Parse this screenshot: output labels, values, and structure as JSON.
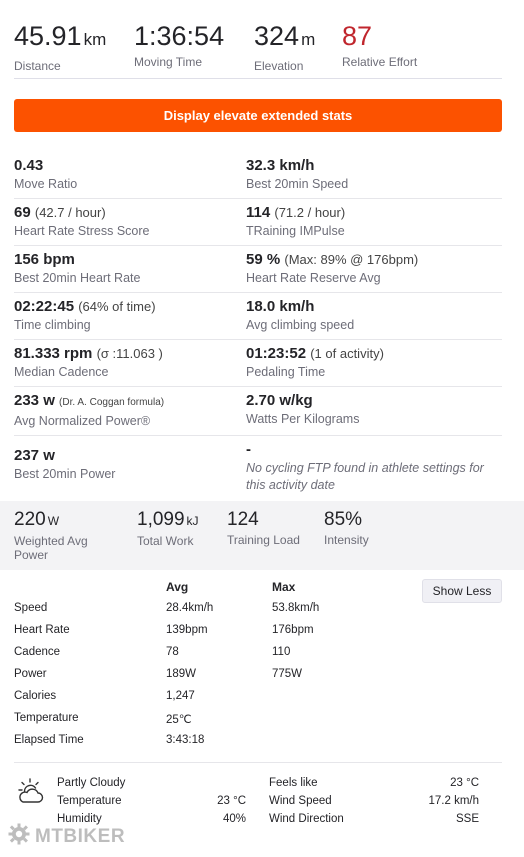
{
  "summary": {
    "distance": {
      "value": "45.91",
      "unit": "km",
      "label": "Distance"
    },
    "moving_time": {
      "value": "1:36:54",
      "label": "Moving Time"
    },
    "elevation": {
      "value": "324",
      "unit": "m",
      "label": "Elevation"
    },
    "relative_effort": {
      "value": "87",
      "label": "Relative Effort"
    }
  },
  "extended_button": "Display elevate extended stats",
  "extended": [
    [
      {
        "value": "0.43",
        "extra": "",
        "label": "Move Ratio"
      },
      {
        "value": "32.3 km/h",
        "extra": "",
        "label": "Best 20min Speed"
      }
    ],
    [
      {
        "value": "69",
        "extra": "(42.7 / hour)",
        "label": "Heart Rate Stress Score"
      },
      {
        "value": "114",
        "extra": "(71.2 / hour)",
        "label": "TRaining IMPulse"
      }
    ],
    [
      {
        "value": "156 bpm",
        "extra": "",
        "label": "Best 20min Heart Rate"
      },
      {
        "value": "59 %",
        "extra": "(Max: 89% @ 176bpm)",
        "label": "Heart Rate Reserve Avg"
      }
    ],
    [
      {
        "value": "02:22:45",
        "extra": "(64% of time)",
        "label": "Time climbing"
      },
      {
        "value": "18.0 km/h",
        "extra": "",
        "label": "Avg climbing speed"
      }
    ],
    [
      {
        "value": "81.333 rpm",
        "extra": "(σ :11.063 )",
        "label": "Median Cadence"
      },
      {
        "value": "01:23:52",
        "extra": "(1 of activity)",
        "label": "Pedaling Time"
      }
    ],
    [
      {
        "value": "233 w",
        "extra": "(Dr. A. Coggan formula)",
        "label": "Avg Normalized Power®"
      },
      {
        "value": "2.70 w/kg",
        "extra": "",
        "label": "Watts Per Kilograms"
      }
    ],
    [
      {
        "value": "237 w",
        "extra": "",
        "label": "Best 20min Power"
      },
      {
        "value": "-",
        "extra": "",
        "label": "No cycling FTP found in athlete settings for this activity date"
      }
    ]
  ],
  "band": {
    "weighted_avg_power": {
      "value": "220",
      "unit": "W",
      "label": "Weighted Avg Power"
    },
    "total_work": {
      "value": "1,099",
      "unit": "kJ",
      "label": "Total Work"
    },
    "training_load": {
      "value": "124",
      "label": "Training Load"
    },
    "intensity": {
      "value": "85%",
      "label": "Intensity"
    }
  },
  "table": {
    "avg_header": "Avg",
    "max_header": "Max",
    "show_less": "Show Less",
    "rows": [
      {
        "name": "Speed",
        "avg": "28.4km/h",
        "max": "53.8km/h"
      },
      {
        "name": "Heart Rate",
        "avg": "139bpm",
        "max": "176bpm"
      },
      {
        "name": "Cadence",
        "avg": "78",
        "max": "110"
      },
      {
        "name": "Power",
        "avg": "189W",
        "max": "775W"
      },
      {
        "name": "Calories",
        "avg": "1,247",
        "max": ""
      },
      {
        "name": "Temperature",
        "avg": "25℃",
        "max": ""
      },
      {
        "name": "Elapsed Time",
        "avg": "3:43:18",
        "max": ""
      }
    ]
  },
  "weather": {
    "condition": "Partly Cloudy",
    "temperature_label": "Temperature",
    "temperature_value": "23 °C",
    "humidity_label": "Humidity",
    "humidity_value": "40%",
    "feels_like_label": "Feels like",
    "feels_like_value": "23 °C",
    "wind_speed_label": "Wind Speed",
    "wind_speed_value": "17.2 km/h",
    "wind_direction_label": "Wind Direction",
    "wind_direction_value": "SSE",
    "icon": "partly-cloudy-icon"
  },
  "watermark": {
    "text": "MTBIKER"
  },
  "colors": {
    "accent": "#fc5200",
    "relative_effort": "#c0262d"
  }
}
